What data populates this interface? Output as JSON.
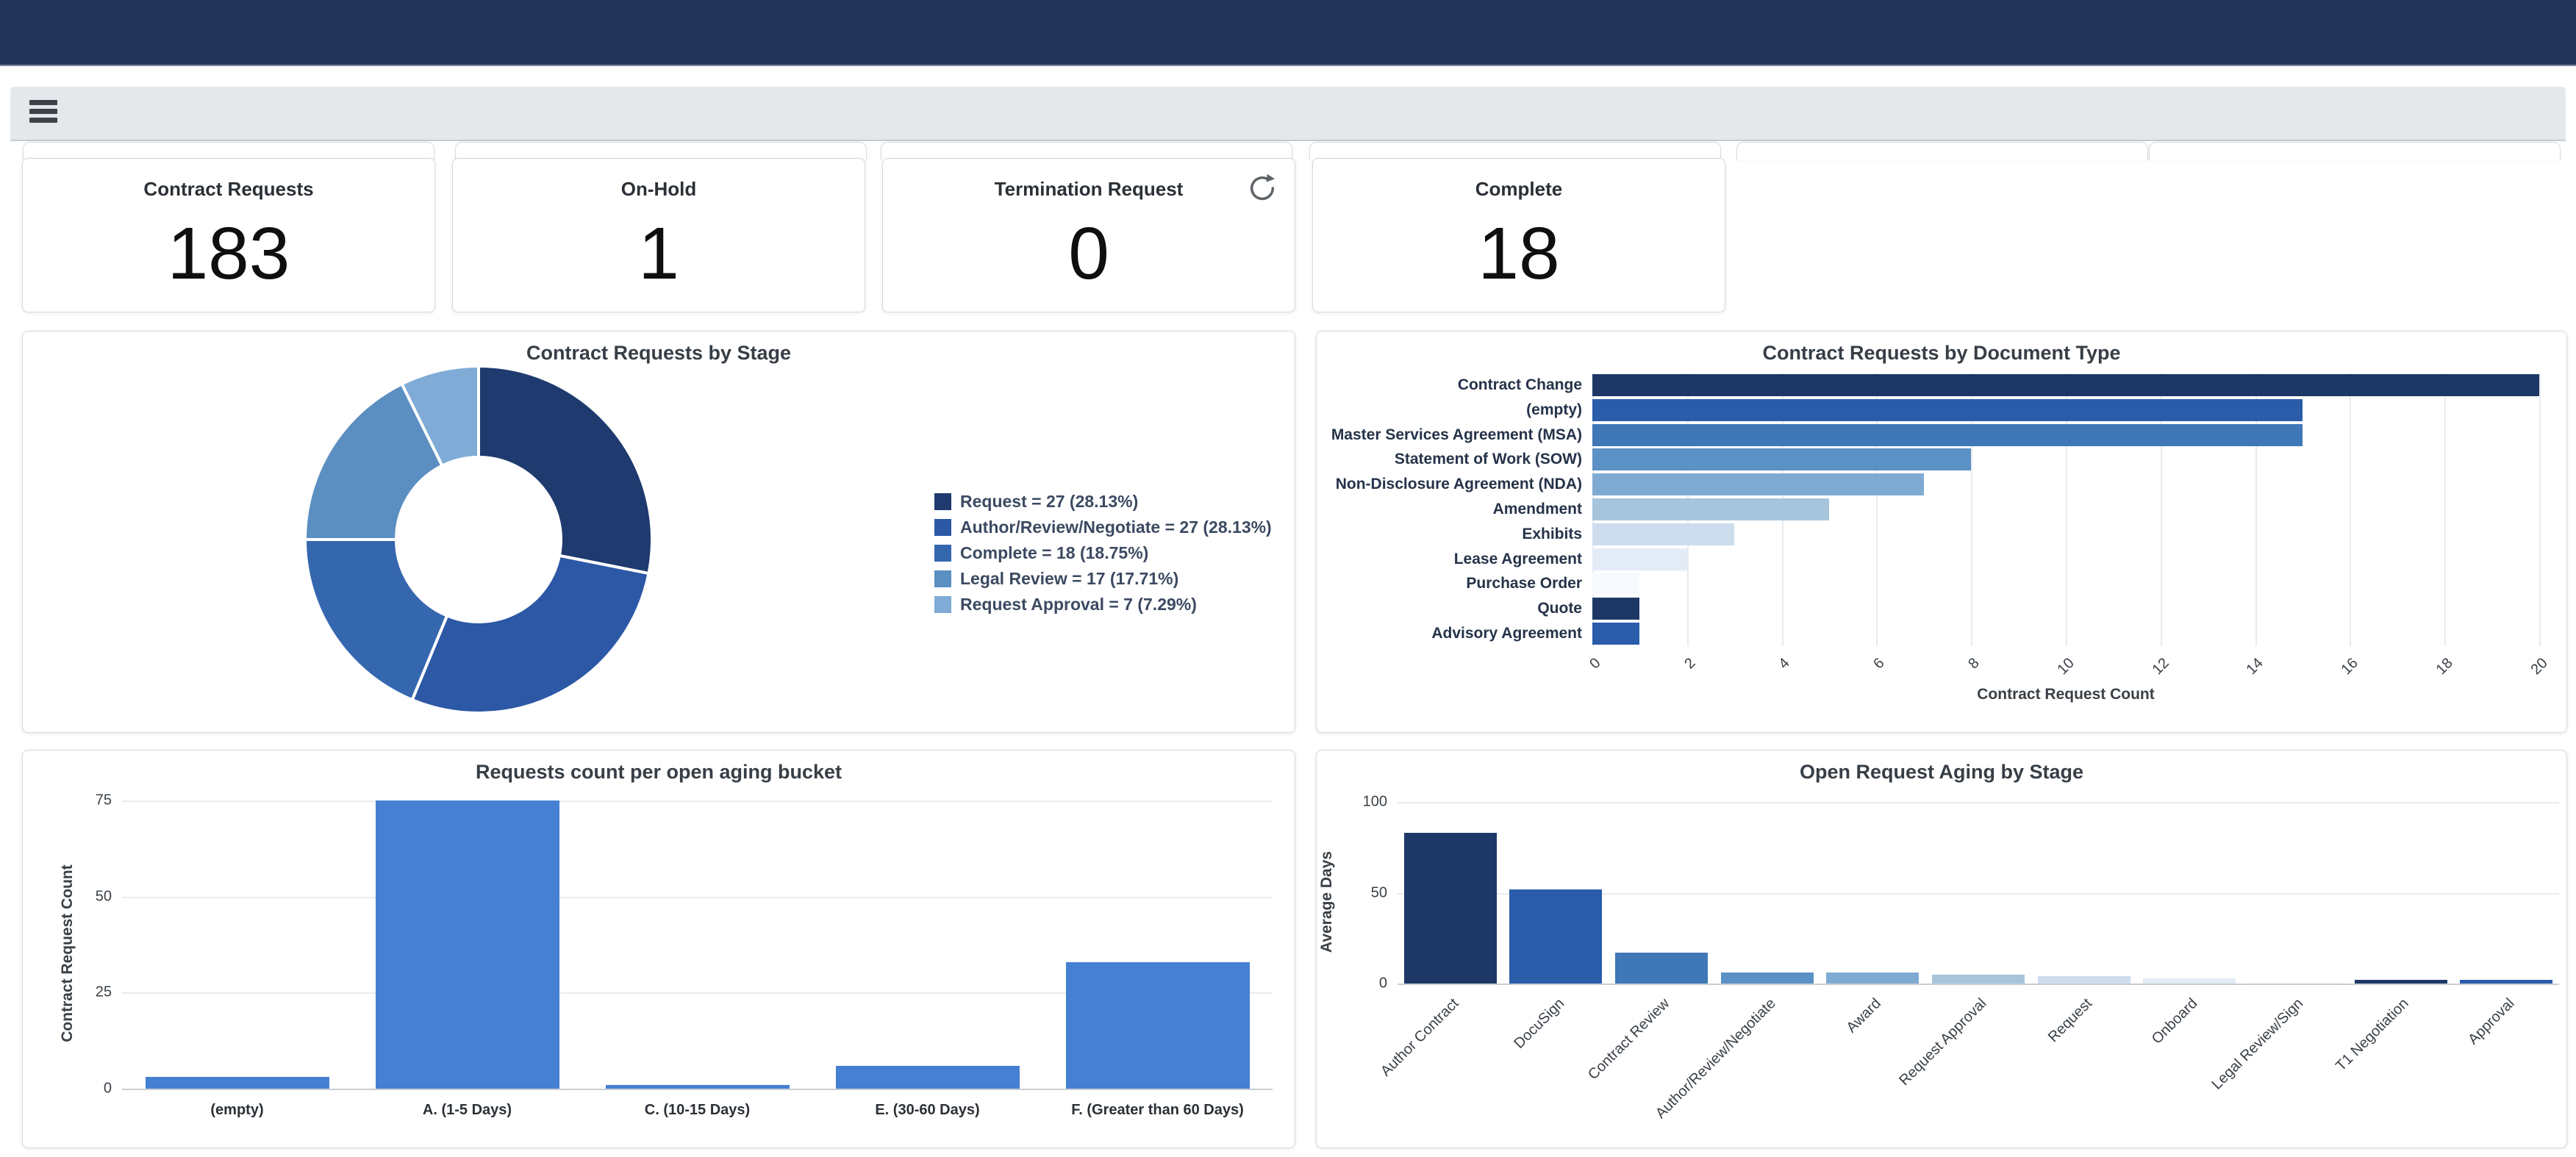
{
  "header": {
    "background": "#23345a"
  },
  "toolbar": {
    "menu_icon": "hamburger"
  },
  "kpis": [
    {
      "label": "Contract Requests",
      "value": "183",
      "has_refresh": false
    },
    {
      "label": "On-Hold",
      "value": "1",
      "has_refresh": false
    },
    {
      "label": "Termination Request",
      "value": "0",
      "has_refresh": true
    },
    {
      "label": "Complete",
      "value": "18",
      "has_refresh": false
    }
  ],
  "colors": {
    "header": "#23345a",
    "toolbar": "#e5e8eb",
    "kpi_number": "#0e0f10",
    "single_series_bar": "#4680d2",
    "sequential_palette": [
      "#1d3866",
      "#2a5caa",
      "#3f77b7",
      "#5b91c5",
      "#7fabd3",
      "#a6c5dd",
      "#cdddee",
      "#e3ecf6",
      "#f6f9fd"
    ],
    "donut_palette": [
      "#1e3a6e",
      "#2c58a6",
      "#3567af",
      "#5b8fc1",
      "#7fabd6"
    ]
  },
  "chart_data": [
    {
      "type": "pie",
      "subtype": "donut",
      "title": "Contract Requests by Stage",
      "legend_position": "right",
      "series": [
        {
          "label": "Request",
          "value": 27,
          "pct": "28.13%"
        },
        {
          "label": "Author/Review/Negotiate",
          "value": 27,
          "pct": "28.13%"
        },
        {
          "label": "Complete",
          "value": 18,
          "pct": "18.75%"
        },
        {
          "label": "Legal Review",
          "value": 17,
          "pct": "17.71%"
        },
        {
          "label": "Request Approval",
          "value": 7,
          "pct": "7.29%"
        }
      ]
    },
    {
      "type": "bar",
      "orientation": "horizontal",
      "title": "Contract Requests by Document Type",
      "categories": [
        "Contract Change",
        "(empty)",
        "Master Services Agreement (MSA)",
        "Statement of Work (SOW)",
        "Non-Disclosure Agreement (NDA)",
        "Amendment",
        "Exhibits",
        "Lease Agreement",
        "Purchase Order",
        "Quote",
        "Advisory Agreement"
      ],
      "values": [
        20,
        15,
        15,
        8,
        7,
        5,
        3,
        2,
        1,
        1,
        1
      ],
      "xlabel": "Contract Request Count",
      "xlim": [
        0,
        20
      ],
      "xticks": [
        0,
        2,
        4,
        6,
        8,
        10,
        12,
        14,
        16,
        18,
        20
      ],
      "grid": true
    },
    {
      "type": "bar",
      "orientation": "vertical",
      "title": "Requests count per open aging bucket",
      "categories": [
        "(empty)",
        "A. (1-5 Days)",
        "C. (10-15 Days)",
        "E. (30-60 Days)",
        "F. (Greater than 60 Days)"
      ],
      "values": [
        3,
        75,
        1,
        6,
        33
      ],
      "ylabel": "Contract Request Count",
      "ylim": [
        0,
        75
      ],
      "yticks": [
        0,
        25,
        50,
        75
      ],
      "grid": true
    },
    {
      "type": "bar",
      "orientation": "vertical",
      "title": "Open Request Aging by Stage",
      "categories": [
        "Author Contract",
        "DocuSign",
        "Contract Review",
        "Author/Review/Negotiate",
        "Award",
        "Request Approval",
        "Request",
        "Onboard",
        "Legal Review/Sign",
        "T1 Negotiation",
        "Approval"
      ],
      "values": [
        83,
        52,
        17,
        6,
        6,
        5,
        4,
        3,
        1,
        2,
        2
      ],
      "ylabel": "Average Days",
      "ylim": [
        0,
        100
      ],
      "yticks": [
        0,
        50,
        100
      ],
      "grid": true
    }
  ]
}
